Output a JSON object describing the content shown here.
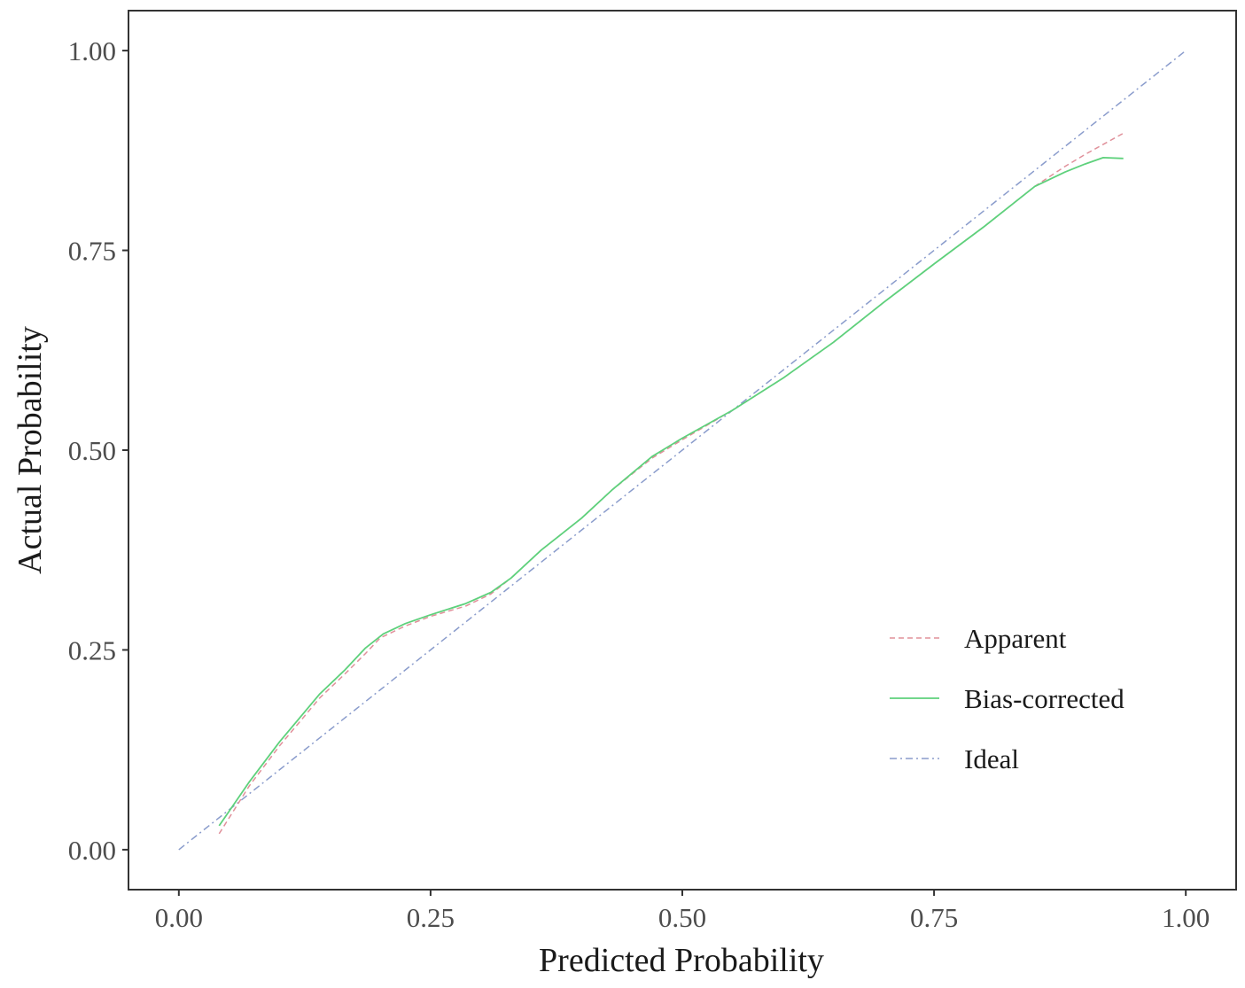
{
  "chart_data": {
    "type": "line",
    "title": "",
    "xlabel": "Predicted Probability",
    "ylabel": "Actual Probability",
    "xlim": [
      -0.05,
      1.05
    ],
    "ylim": [
      -0.05,
      1.05
    ],
    "xticks": [
      0,
      0.25,
      0.5,
      0.75,
      1
    ],
    "yticks": [
      0,
      0.25,
      0.5,
      0.75,
      1
    ],
    "xtick_labels": [
      "0.00",
      "0.25",
      "0.50",
      "0.75",
      "1.00"
    ],
    "ytick_labels": [
      "0.00",
      "0.25",
      "0.50",
      "0.75",
      "1.00"
    ],
    "grid": false,
    "legend_position": "bottom-right",
    "series": [
      {
        "name": "Apparent",
        "color": "#e0909a",
        "dash": "dashed",
        "x": [
          0.04,
          0.07,
          0.1,
          0.14,
          0.165,
          0.185,
          0.2,
          0.225,
          0.25,
          0.285,
          0.31,
          0.33,
          0.36,
          0.4,
          0.43,
          0.47,
          0.5,
          0.55,
          0.6,
          0.65,
          0.7,
          0.75,
          0.8,
          0.85,
          0.88,
          0.9,
          0.94
        ],
        "y": [
          0.02,
          0.08,
          0.13,
          0.19,
          0.22,
          0.245,
          0.265,
          0.28,
          0.292,
          0.305,
          0.32,
          0.34,
          0.375,
          0.415,
          0.45,
          0.49,
          0.513,
          0.55,
          0.59,
          0.635,
          0.685,
          0.733,
          0.78,
          0.83,
          0.855,
          0.87,
          0.898
        ]
      },
      {
        "name": "Bias-corrected",
        "color": "#5ed17c",
        "dash": "solid",
        "x": [
          0.04,
          0.07,
          0.1,
          0.14,
          0.165,
          0.185,
          0.203,
          0.225,
          0.25,
          0.285,
          0.31,
          0.33,
          0.36,
          0.4,
          0.43,
          0.47,
          0.5,
          0.55,
          0.6,
          0.65,
          0.7,
          0.75,
          0.8,
          0.85,
          0.88,
          0.9,
          0.918,
          0.938
        ],
        "y": [
          0.03,
          0.085,
          0.135,
          0.195,
          0.225,
          0.252,
          0.27,
          0.283,
          0.294,
          0.308,
          0.322,
          0.34,
          0.375,
          0.415,
          0.45,
          0.492,
          0.515,
          0.55,
          0.59,
          0.635,
          0.685,
          0.733,
          0.78,
          0.83,
          0.848,
          0.858,
          0.866,
          0.865
        ]
      },
      {
        "name": "Ideal",
        "color": "#8a9ccc",
        "dash": "dashdot",
        "x": [
          0,
          1
        ],
        "y": [
          0,
          1
        ]
      }
    ]
  }
}
